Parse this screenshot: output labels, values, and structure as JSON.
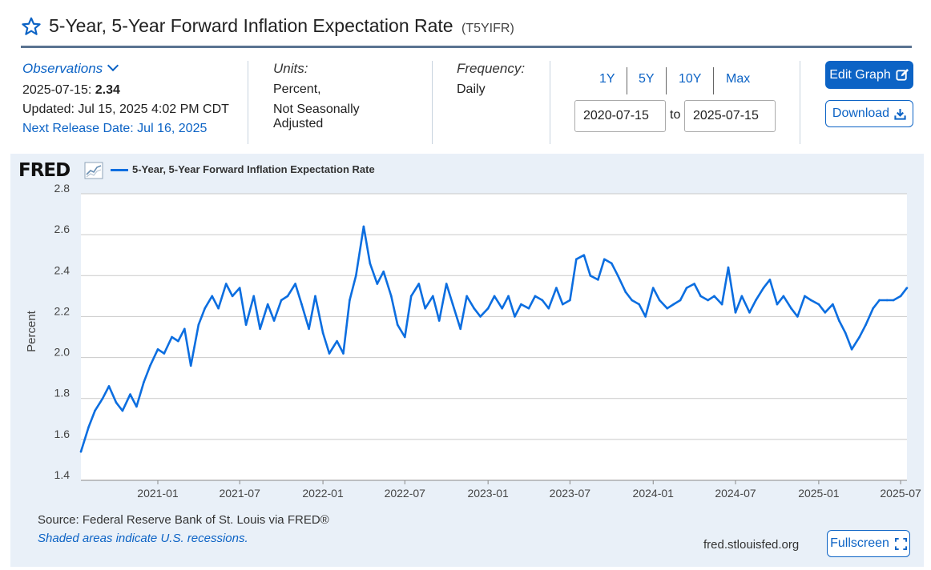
{
  "header": {
    "title": "5-Year, 5-Year Forward Inflation Expectation Rate",
    "series_id": "(T5YIFR)"
  },
  "observations": {
    "label": "Observations",
    "date": "2025-07-15:",
    "value": "2.34",
    "updated": "Updated: Jul 15, 2025 4:02 PM CDT",
    "next_release": "Next Release Date: Jul 16, 2025"
  },
  "units": {
    "label": "Units:",
    "line1": "Percent,",
    "line2": "Not Seasonally",
    "line3": "Adjusted"
  },
  "frequency": {
    "label": "Frequency:",
    "value": "Daily"
  },
  "range": {
    "buttons": [
      "1Y",
      "5Y",
      "10Y",
      "Max"
    ],
    "start": "2020-07-15",
    "to": "to",
    "end": "2025-07-15"
  },
  "actions": {
    "edit_graph": "Edit Graph",
    "download": "Download"
  },
  "chart_panel": {
    "logo": "FRED",
    "source": "Source: Federal Reserve Bank of St. Louis via FRED®",
    "recession_note": "Shaded areas indicate U.S. recessions.",
    "site": "fred.stlouisfed.org",
    "fullscreen": "Fullscreen"
  },
  "colors": {
    "accent": "#0c63c5",
    "series": "#0c6ee0",
    "panel_bg": "#e9f0f8",
    "title_rule": "#5a7391"
  },
  "icons": {
    "favorite": "star-outline-icon",
    "observations": "chevron-down-icon",
    "edit": "edit-icon",
    "download": "download-icon",
    "fullscreen": "fullscreen-icon",
    "logo_chart": "sparkline-icon"
  },
  "chart_data": {
    "type": "line",
    "title": "",
    "xlabel": "",
    "ylabel": "Percent",
    "ylim": [
      1.4,
      2.8
    ],
    "yticks": [
      1.4,
      1.6,
      1.8,
      2.0,
      2.2,
      2.4,
      2.6,
      2.8
    ],
    "xlim": [
      "2020-07-15",
      "2025-07-15"
    ],
    "xticks": [
      "2021-01",
      "2021-07",
      "2022-01",
      "2022-07",
      "2023-01",
      "2023-07",
      "2024-01",
      "2024-07",
      "2025-01",
      "2025-07"
    ],
    "grid": true,
    "legend": "top-left",
    "series": [
      {
        "name": "5-Year, 5-Year Forward Inflation Expectation Rate",
        "x": [
          "2020-07-15",
          "2020-08-01",
          "2020-08-15",
          "2020-09-01",
          "2020-09-15",
          "2020-10-01",
          "2020-10-15",
          "2020-11-01",
          "2020-11-15",
          "2020-12-01",
          "2020-12-15",
          "2021-01-01",
          "2021-01-15",
          "2021-02-01",
          "2021-02-15",
          "2021-03-01",
          "2021-03-15",
          "2021-04-01",
          "2021-04-15",
          "2021-05-01",
          "2021-05-15",
          "2021-06-01",
          "2021-06-15",
          "2021-07-01",
          "2021-07-15",
          "2021-08-01",
          "2021-08-15",
          "2021-09-01",
          "2021-09-15",
          "2021-10-01",
          "2021-10-15",
          "2021-11-01",
          "2021-11-15",
          "2021-12-01",
          "2021-12-15",
          "2022-01-01",
          "2022-01-15",
          "2022-02-01",
          "2022-02-15",
          "2022-03-01",
          "2022-03-15",
          "2022-04-01",
          "2022-04-15",
          "2022-05-01",
          "2022-05-15",
          "2022-06-01",
          "2022-06-15",
          "2022-07-01",
          "2022-07-15",
          "2022-08-01",
          "2022-08-15",
          "2022-09-01",
          "2022-09-15",
          "2022-10-01",
          "2022-10-15",
          "2022-11-01",
          "2022-11-15",
          "2022-12-01",
          "2022-12-15",
          "2023-01-01",
          "2023-01-15",
          "2023-02-01",
          "2023-02-15",
          "2023-03-01",
          "2023-03-15",
          "2023-04-01",
          "2023-04-15",
          "2023-05-01",
          "2023-05-15",
          "2023-06-01",
          "2023-06-15",
          "2023-07-01",
          "2023-07-15",
          "2023-08-01",
          "2023-08-15",
          "2023-09-01",
          "2023-09-15",
          "2023-10-01",
          "2023-10-15",
          "2023-11-01",
          "2023-11-15",
          "2023-12-01",
          "2023-12-15",
          "2024-01-01",
          "2024-01-15",
          "2024-02-01",
          "2024-02-15",
          "2024-03-01",
          "2024-03-15",
          "2024-04-01",
          "2024-04-15",
          "2024-05-01",
          "2024-05-15",
          "2024-06-01",
          "2024-06-15",
          "2024-07-01",
          "2024-07-15",
          "2024-08-01",
          "2024-08-15",
          "2024-09-01",
          "2024-09-15",
          "2024-10-01",
          "2024-10-15",
          "2024-11-01",
          "2024-11-15",
          "2024-12-01",
          "2024-12-15",
          "2025-01-01",
          "2025-01-15",
          "2025-02-01",
          "2025-02-15",
          "2025-03-01",
          "2025-03-15",
          "2025-04-01",
          "2025-04-15",
          "2025-05-01",
          "2025-05-15",
          "2025-06-01",
          "2025-06-15",
          "2025-07-01",
          "2025-07-15"
        ],
        "values": [
          1.54,
          1.66,
          1.74,
          1.8,
          1.86,
          1.78,
          1.74,
          1.82,
          1.76,
          1.88,
          1.96,
          2.04,
          2.02,
          2.1,
          2.08,
          2.14,
          1.96,
          2.16,
          2.24,
          2.3,
          2.24,
          2.36,
          2.3,
          2.34,
          2.16,
          2.3,
          2.14,
          2.26,
          2.18,
          2.28,
          2.3,
          2.36,
          2.26,
          2.14,
          2.3,
          2.12,
          2.02,
          2.08,
          2.02,
          2.28,
          2.4,
          2.64,
          2.46,
          2.36,
          2.42,
          2.3,
          2.16,
          2.1,
          2.3,
          2.36,
          2.24,
          2.3,
          2.18,
          2.36,
          2.26,
          2.14,
          2.3,
          2.24,
          2.2,
          2.24,
          2.3,
          2.24,
          2.3,
          2.2,
          2.26,
          2.24,
          2.3,
          2.28,
          2.24,
          2.34,
          2.26,
          2.28,
          2.48,
          2.5,
          2.4,
          2.38,
          2.48,
          2.46,
          2.4,
          2.32,
          2.28,
          2.26,
          2.2,
          2.34,
          2.28,
          2.24,
          2.26,
          2.28,
          2.34,
          2.36,
          2.3,
          2.28,
          2.3,
          2.26,
          2.44,
          2.22,
          2.3,
          2.22,
          2.28,
          2.34,
          2.38,
          2.26,
          2.3,
          2.24,
          2.2,
          2.3,
          2.28,
          2.26,
          2.22,
          2.26,
          2.18,
          2.12,
          2.04,
          2.1,
          2.16,
          2.24,
          2.28,
          2.28,
          2.28,
          2.3,
          2.34
        ]
      }
    ]
  }
}
